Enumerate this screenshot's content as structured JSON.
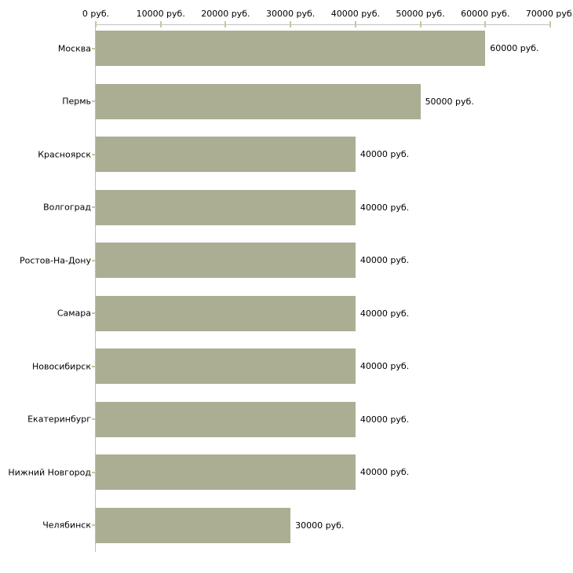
{
  "chart_data": {
    "type": "bar",
    "orientation": "horizontal",
    "title": "",
    "xlabel": "",
    "ylabel": "",
    "xlim": [
      0,
      70000
    ],
    "grid": false,
    "legend_position": "none",
    "x_ticks": [
      0,
      10000,
      20000,
      30000,
      40000,
      50000,
      60000,
      70000
    ],
    "x_tick_labels": [
      "0 руб.",
      "10000 руб.",
      "20000 руб.",
      "30000 руб.",
      "40000 руб.",
      "50000 руб.",
      "60000 руб.",
      "70000 руб."
    ],
    "categories": [
      "Москва",
      "Пермь",
      "Красноярск",
      "Волгоград",
      "Ростов-На-Дону",
      "Самара",
      "Новосибирск",
      "Екатеринбург",
      "Нижний Новгород",
      "Челябинск"
    ],
    "values": [
      60000,
      50000,
      40000,
      40000,
      40000,
      40000,
      40000,
      40000,
      40000,
      30000
    ],
    "value_labels": [
      "60000 руб.",
      "50000 руб.",
      "40000 руб.",
      "40000 руб.",
      "40000 руб.",
      "40000 руб.",
      "40000 руб.",
      "40000 руб.",
      "40000 руб.",
      "30000 руб."
    ],
    "unit": "руб.",
    "colors": {
      "bar": "#abae93",
      "axis_line": "#c2c2c2",
      "tick": "#c9c69b",
      "text": "#000000",
      "background": "#ffffff"
    }
  }
}
